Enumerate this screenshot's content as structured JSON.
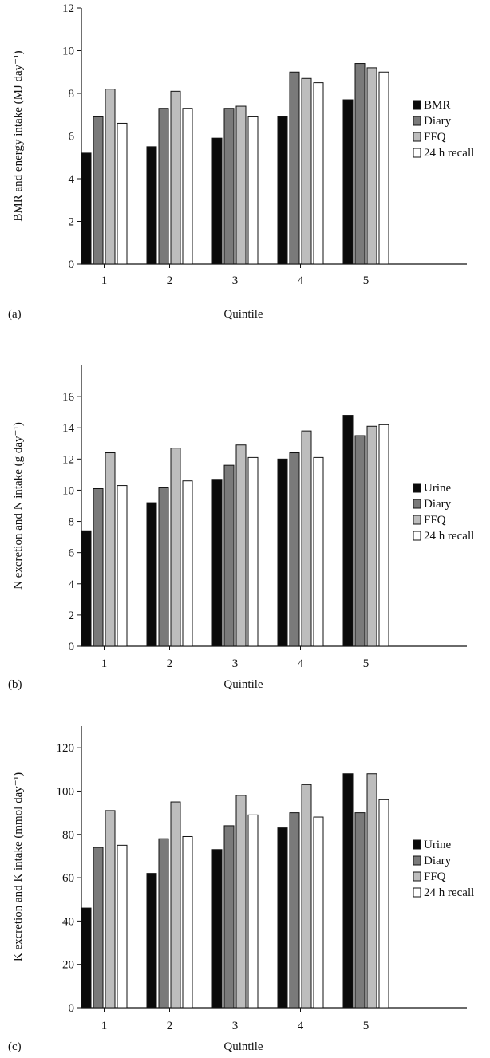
{
  "chart_data": [
    {
      "type": "bar",
      "panel_label": "(a)",
      "ylabel": "BMR and energy intake (MJ day⁻¹)",
      "xlabel": "Quintile",
      "categories": [
        "1",
        "2",
        "3",
        "4",
        "5"
      ],
      "ylim": [
        0,
        12
      ],
      "yticks": [
        0,
        2,
        4,
        6,
        8,
        10,
        12
      ],
      "series": [
        {
          "name": "BMR",
          "color": "#0a0a0a",
          "values": [
            5.2,
            5.5,
            5.9,
            6.9,
            7.7
          ]
        },
        {
          "name": "Diary",
          "color": "#7a7a7a",
          "values": [
            6.9,
            7.3,
            7.3,
            9.0,
            9.4
          ]
        },
        {
          "name": "FFQ",
          "color": "#bdbdbd",
          "values": [
            8.2,
            8.1,
            7.4,
            8.7,
            9.2
          ]
        },
        {
          "name": "24 h recall",
          "color": "#ffffff",
          "values": [
            6.6,
            7.3,
            6.9,
            8.5,
            9.0
          ]
        }
      ],
      "legend_position": "right",
      "grid": false
    },
    {
      "type": "bar",
      "panel_label": "(b)",
      "ylabel": "N excretion and N intake (g day⁻¹)",
      "xlabel": "Quintile",
      "categories": [
        "1",
        "2",
        "3",
        "4",
        "5"
      ],
      "ylim": [
        0,
        18
      ],
      "yticks": [
        0,
        2,
        4,
        6,
        8,
        10,
        12,
        14,
        16
      ],
      "series": [
        {
          "name": "Urine",
          "color": "#0a0a0a",
          "values": [
            7.4,
            9.2,
            10.7,
            12.0,
            14.8
          ]
        },
        {
          "name": "Diary",
          "color": "#7a7a7a",
          "values": [
            10.1,
            10.2,
            11.6,
            12.4,
            13.5
          ]
        },
        {
          "name": "FFQ",
          "color": "#bdbdbd",
          "values": [
            12.4,
            12.7,
            12.9,
            13.8,
            14.1
          ]
        },
        {
          "name": "24 h recall",
          "color": "#ffffff",
          "values": [
            10.3,
            10.6,
            12.1,
            12.1,
            14.2
          ]
        }
      ],
      "legend_position": "right",
      "grid": false
    },
    {
      "type": "bar",
      "panel_label": "(c)",
      "ylabel": "K excretion and K intake (mmol day⁻¹)",
      "xlabel": "Quintile",
      "categories": [
        "1",
        "2",
        "3",
        "4",
        "5"
      ],
      "ylim": [
        0,
        130
      ],
      "yticks": [
        0,
        20,
        40,
        60,
        80,
        100,
        120
      ],
      "series": [
        {
          "name": "Urine",
          "color": "#0a0a0a",
          "values": [
            46,
            62,
            73,
            83,
            108
          ]
        },
        {
          "name": "Diary",
          "color": "#7a7a7a",
          "values": [
            74,
            78,
            84,
            90,
            90
          ]
        },
        {
          "name": "FFQ",
          "color": "#bdbdbd",
          "values": [
            91,
            95,
            98,
            103,
            108
          ]
        },
        {
          "name": "24 h recall",
          "color": "#ffffff",
          "values": [
            75,
            79,
            89,
            88,
            96
          ]
        }
      ],
      "legend_position": "right",
      "grid": false
    }
  ]
}
